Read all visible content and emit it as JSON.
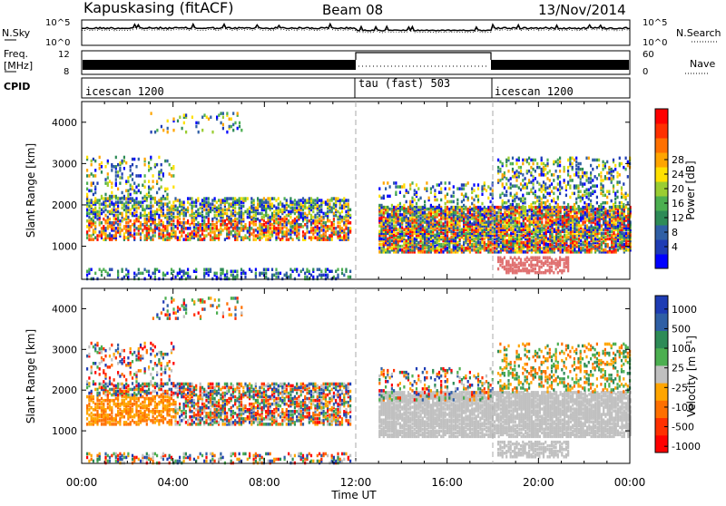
{
  "header": {
    "station": "Kapuskasing (fitACF)",
    "beam": "Beam 08",
    "date": "13/Nov/2014"
  },
  "left_labels": {
    "nsky": "N.Sky",
    "freq": "Freq.",
    "freq_unit": "[MHz]",
    "cpid": "CPID"
  },
  "right_labels": {
    "nsearch": "N.Search",
    "nave": "Nave"
  },
  "noise_panel": {
    "ticks_left": [
      "10^5",
      "10^0"
    ],
    "ticks_right": [
      "10^5",
      "10^0"
    ]
  },
  "freq_panel": {
    "ticks_left": [
      "12",
      "8"
    ],
    "ticks_right": [
      "60",
      "0"
    ]
  },
  "cpid_segments": [
    {
      "label": "icescan 1200",
      "start_hour": 0,
      "end_hour": 12
    },
    {
      "label": "tau (fast) 503",
      "start_hour": 12,
      "end_hour": 18
    },
    {
      "label": "icescan 1200",
      "start_hour": 18,
      "end_hour": 24
    }
  ],
  "chart_data": [
    {
      "type": "heatmap",
      "name": "power",
      "ylabel": "Slant Range [km]",
      "ylim": [
        200,
        4500
      ],
      "yticks": [
        1000,
        2000,
        3000,
        4000
      ],
      "xlim": [
        0,
        24
      ],
      "xticks": [
        "00:00",
        "04:00",
        "08:00",
        "12:00",
        "16:00",
        "20:00",
        "00:00"
      ],
      "colorbar": {
        "label": "Power [dB]",
        "tick_labels": [
          "4",
          "8",
          "12",
          "16",
          "20",
          "24",
          "28"
        ],
        "colors": [
          "#0000ff",
          "#1e3cb4",
          "#2f5fa5",
          "#2e8b57",
          "#4caf50",
          "#9acd32",
          "#ffe000",
          "#ffa500",
          "#ff7000",
          "#ff3000",
          "#ff0000"
        ]
      }
    },
    {
      "type": "heatmap",
      "name": "velocity",
      "ylabel": "Slant Range [km]",
      "ylim": [
        200,
        4500
      ],
      "yticks": [
        1000,
        2000,
        3000,
        4000
      ],
      "xlim": [
        0,
        24
      ],
      "xticks": [
        "00:00",
        "04:00",
        "08:00",
        "12:00",
        "16:00",
        "20:00",
        "00:00"
      ],
      "xlabel": "Time UT",
      "colorbar": {
        "label": "Velocity [m s^-1]",
        "tick_labels": [
          "1000",
          "500",
          "100",
          "25",
          "-25",
          "-100",
          "-500",
          "-1000"
        ],
        "colors": [
          "#1e3cb4",
          "#2f5fa5",
          "#2e8b57",
          "#4caf50",
          "#c0c0c0",
          "#ffa500",
          "#ff7000",
          "#ff3000",
          "#ff0000"
        ]
      }
    }
  ]
}
